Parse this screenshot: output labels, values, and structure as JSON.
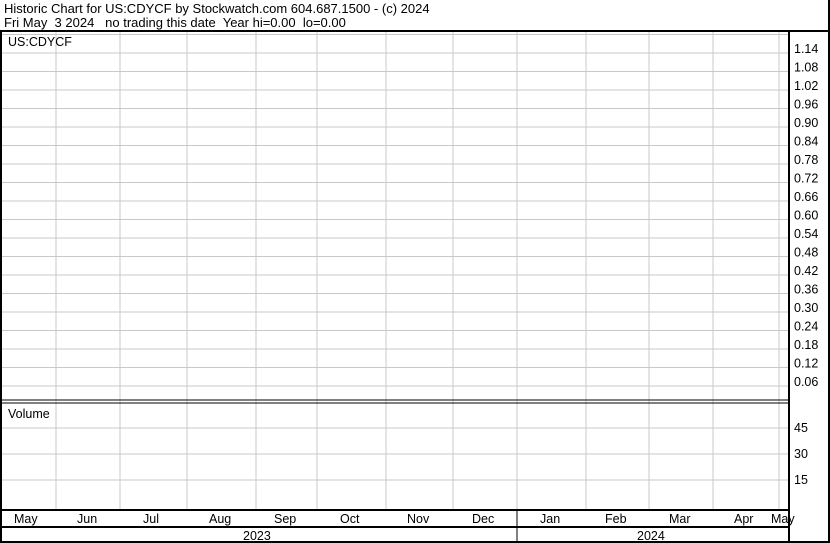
{
  "header": {
    "title": "Historic Chart for US:CDYCF by Stockwatch.com 604.687.1500 - (c) 2024",
    "subtitle": "Fri May  3 2024   no trading this date  Year hi=0.00  lo=0.00"
  },
  "chart_data": [
    {
      "type": "line",
      "title": "US:CDYCF",
      "series": [],
      "y_ticks": [
        "1.14",
        "1.08",
        "1.02",
        "0.96",
        "0.90",
        "0.84",
        "0.78",
        "0.72",
        "0.66",
        "0.60",
        "0.54",
        "0.48",
        "0.42",
        "0.36",
        "0.30",
        "0.24",
        "0.18",
        "0.12",
        "0.06"
      ],
      "ylim": [
        0,
        1.17
      ],
      "grid": true,
      "y_axis_side": "right"
    },
    {
      "type": "bar",
      "title": "Volume",
      "series": [],
      "y_ticks": [
        "45",
        "30",
        "15"
      ],
      "ylim": [
        0,
        60
      ],
      "grid": true,
      "y_axis_side": "right"
    }
  ],
  "x_axis": {
    "months": [
      "May",
      "Jun",
      "Jul",
      "Aug",
      "Sep",
      "Oct",
      "Nov",
      "Dec",
      "Jan",
      "Feb",
      "Mar",
      "Apr",
      "May"
    ],
    "years": [
      "2023",
      "2024"
    ]
  },
  "colors": {
    "grid": "#c8c8c8",
    "frame": "#000000"
  }
}
